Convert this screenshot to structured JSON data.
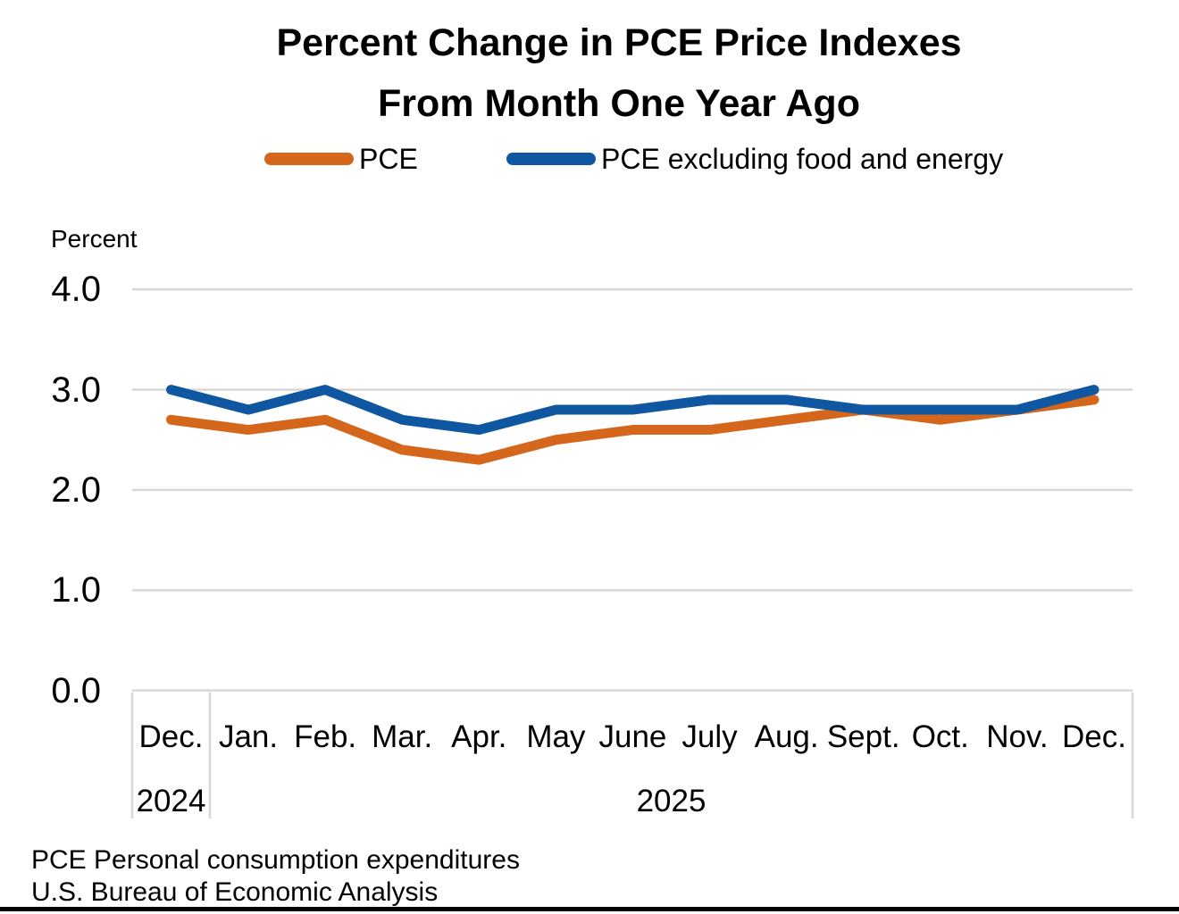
{
  "title": {
    "line1": "Percent Change in PCE Price Indexes",
    "line2": "From Month One Year Ago"
  },
  "legend": {
    "items": [
      {
        "label": "PCE",
        "color": "#D5671D"
      },
      {
        "label": "PCE excluding food and energy",
        "color": "#0F57A0"
      }
    ]
  },
  "axis_unit_label": "Percent",
  "chart_data": {
    "type": "line",
    "categories": [
      "Dec.",
      "Jan.",
      "Feb.",
      "Mar.",
      "Apr.",
      "May",
      "June",
      "July",
      "Aug.",
      "Sept.",
      "Oct.",
      "Nov.",
      "Dec."
    ],
    "year_groups": [
      {
        "label": "2024",
        "start_index": 0,
        "end_index": 0
      },
      {
        "label": "2025",
        "start_index": 1,
        "end_index": 12
      }
    ],
    "series": [
      {
        "name": "PCE",
        "color": "#D5671D",
        "values": [
          2.7,
          2.6,
          2.7,
          2.4,
          2.3,
          2.5,
          2.6,
          2.6,
          2.7,
          2.8,
          2.7,
          2.8,
          2.9
        ]
      },
      {
        "name": "PCE excluding food and energy",
        "color": "#0F57A0",
        "values": [
          3.0,
          2.8,
          3.0,
          2.7,
          2.6,
          2.8,
          2.8,
          2.9,
          2.9,
          2.8,
          2.8,
          2.8,
          3.0
        ]
      }
    ],
    "title": "Percent Change in PCE Price Indexes From Month One Year Ago",
    "xlabel": "",
    "ylabel": "Percent",
    "ylim": [
      0.0,
      4.0
    ],
    "ytick_step": 1.0,
    "y_tick_labels": [
      "0.0",
      "1.0",
      "2.0",
      "3.0",
      "4.0"
    ],
    "grid": true,
    "gridline_color": "#D8D8D8",
    "legend_position": "top"
  },
  "footer": {
    "line1": "PCE Personal consumption expenditures",
    "line2": "U.S. Bureau of Economic Analysis"
  }
}
